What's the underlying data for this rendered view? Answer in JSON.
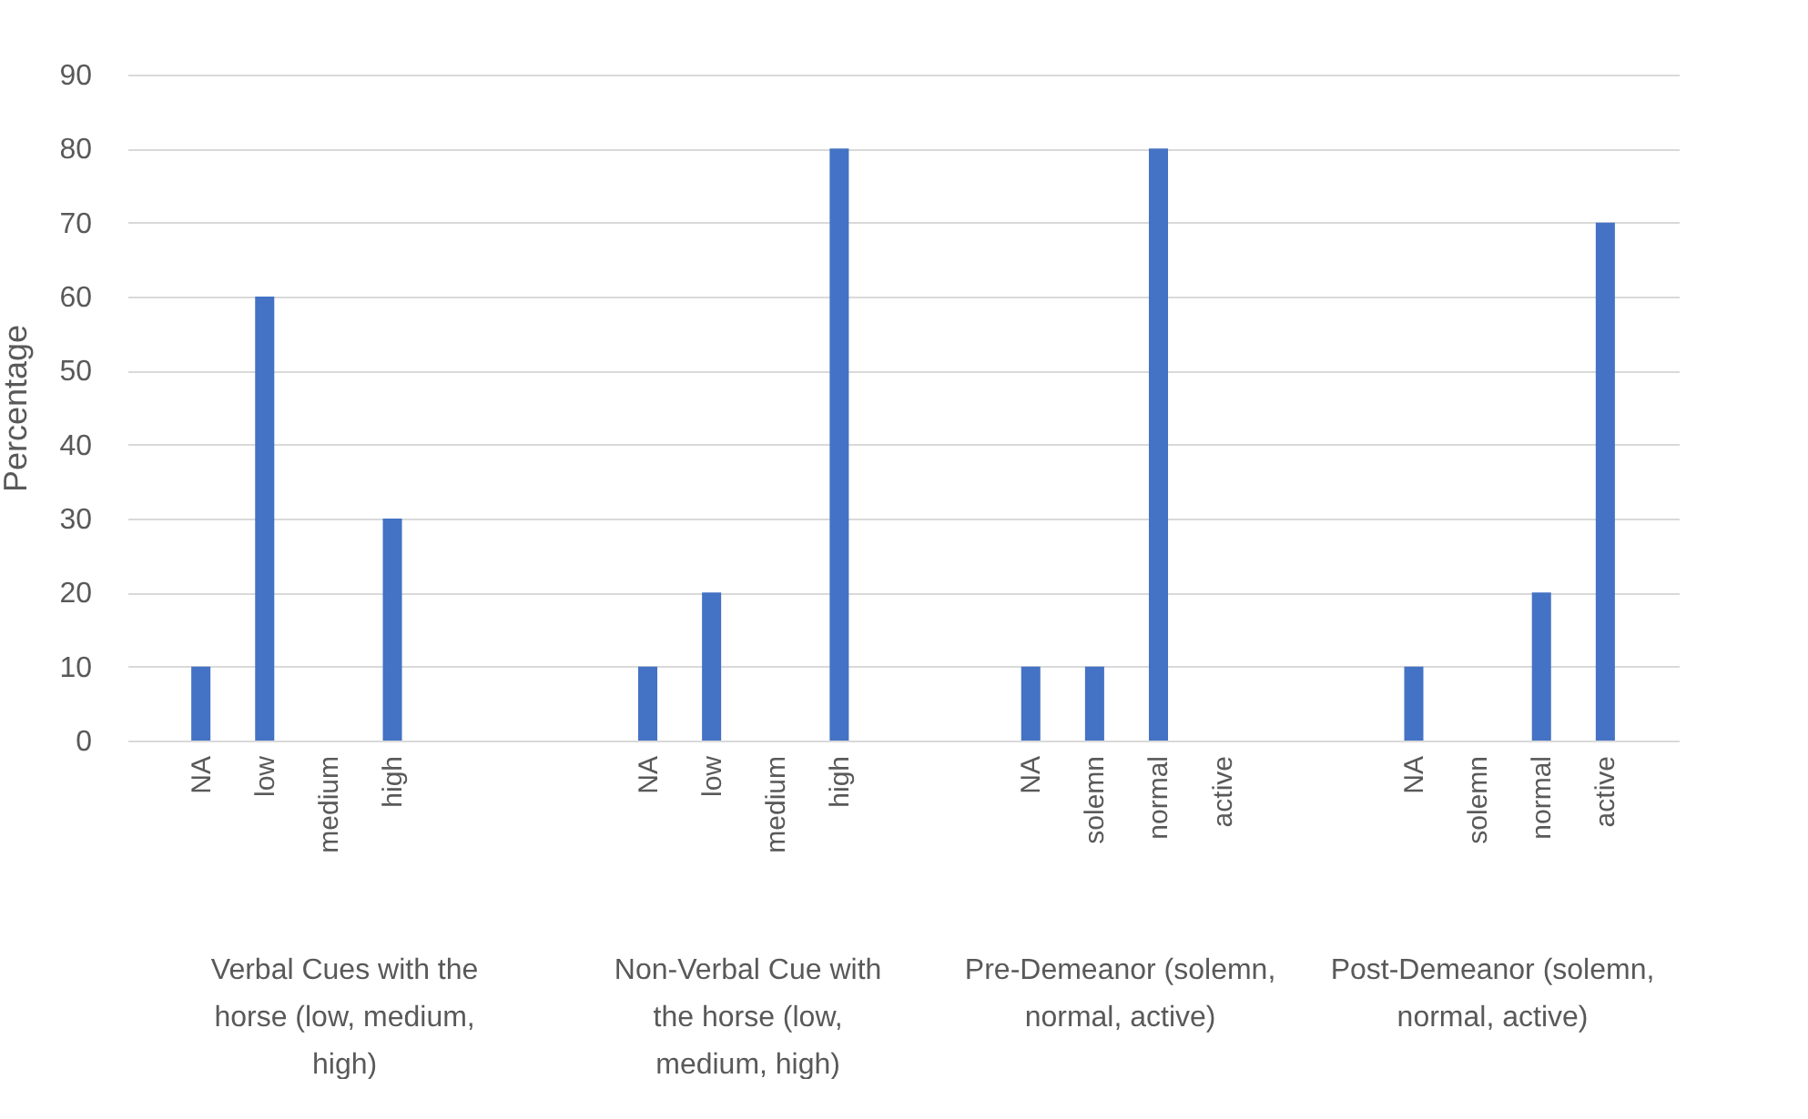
{
  "chart_data": {
    "type": "bar",
    "ylabel": "Percentage",
    "categories": [
      null,
      "NA",
      "low",
      "medium",
      "high",
      null,
      null,
      null,
      "NA",
      "low",
      "medium",
      "high",
      null,
      null,
      "NA",
      "solemn",
      "normal",
      "active",
      null,
      null,
      "NA",
      "solemn",
      "normal",
      "active",
      null
    ],
    "values": [
      null,
      10,
      60,
      0,
      30,
      null,
      null,
      null,
      10,
      20,
      0,
      80,
      null,
      null,
      10,
      10,
      80,
      0,
      null,
      null,
      10,
      0,
      20,
      70,
      null
    ],
    "color": "#4472c4",
    "ylim": [
      0,
      90
    ],
    "yticks": [
      0,
      10,
      20,
      30,
      40,
      50,
      60,
      70,
      80,
      90
    ],
    "grid": "y",
    "annotations": [
      "Verbal Cues with the horse (low, medium, high)",
      "Non-Verbal Cue with the horse (low, medium, high)",
      "Pre-Demeanor (solemn, normal, active)",
      "Post-Demeanor (solemn, normal, active)"
    ]
  }
}
